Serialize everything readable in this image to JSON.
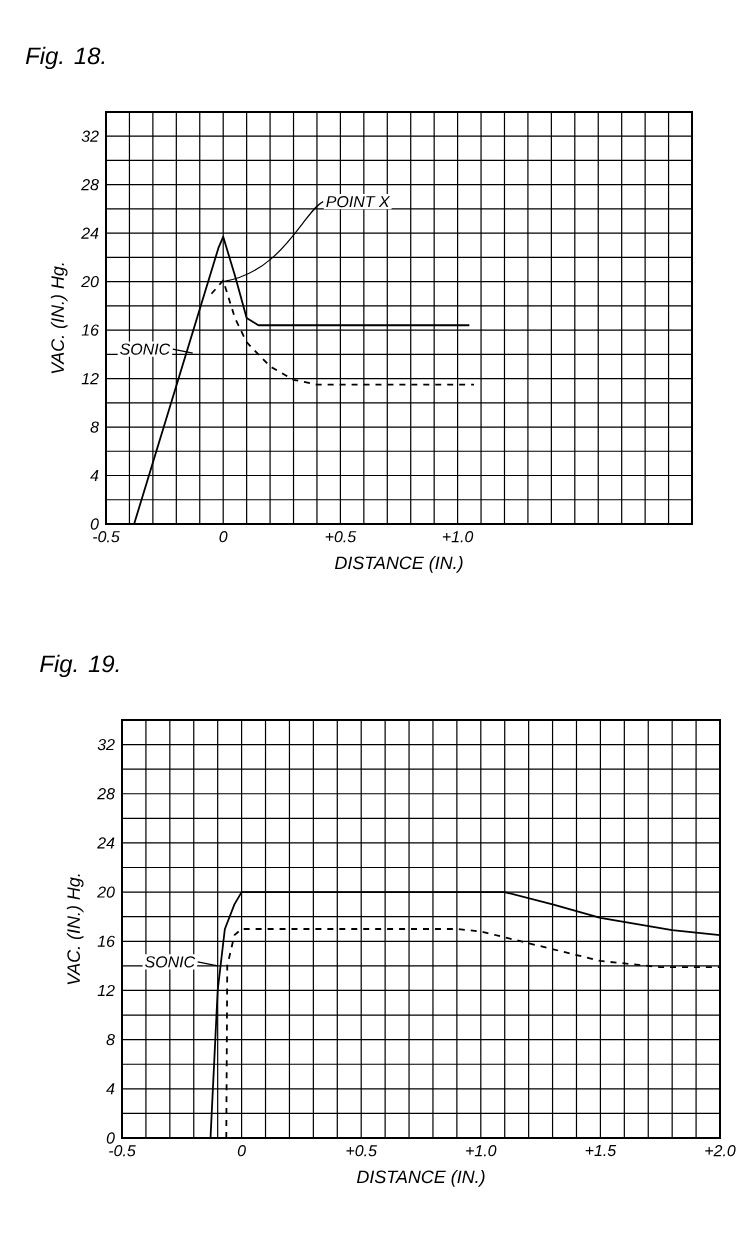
{
  "chart_data": [
    {
      "type": "line",
      "title": "Fig. 18.",
      "xlabel": "DISTANCE (IN.)",
      "ylabel": "VAC. (IN.) Hg.",
      "xlim": [
        -0.5,
        2.0
      ],
      "ylim": [
        0,
        34
      ],
      "xticks": [
        -0.5,
        0,
        {
          "value": 0.5,
          "label": "+0.5"
        },
        {
          "value": 1.0,
          "label": "+1.0"
        },
        {
          "value": 1.5,
          "label": null
        },
        {
          "value": 2.0,
          "label": null
        }
      ],
      "yticks": [
        0,
        4,
        8,
        12,
        16,
        20,
        24,
        28,
        32
      ],
      "grid": true,
      "marker": "none",
      "series": [
        {
          "color": "#000000",
          "line_style": "solid",
          "x": [
            -0.38,
            -0.2,
            -0.02,
            0,
            0.05,
            0.1,
            0.15,
            0.3,
            1.05
          ],
          "values": [
            0,
            11.4,
            22.8,
            23.7,
            20.5,
            17,
            16.4,
            16.4,
            16.4
          ]
        },
        {
          "color": "#000000",
          "line_style": "dashed",
          "x": [
            -0.05,
            0,
            0.05,
            0.1,
            0.2,
            0.3,
            0.4,
            1.07
          ],
          "values": [
            19,
            20.1,
            17,
            15,
            13,
            11.9,
            11.5,
            11.5
          ]
        }
      ],
      "annotations": [
        {
          "text": "POINT X",
          "x": 0.0,
          "y": 20
        },
        {
          "text": "SONIC",
          "x": -0.13,
          "y": 14.1
        }
      ]
    },
    {
      "type": "line",
      "title": "Fig. 19.",
      "xlabel": "DISTANCE (IN.)",
      "ylabel": "VAC. (IN.) Hg.",
      "xlim": [
        -0.5,
        2.0
      ],
      "ylim": [
        0,
        34
      ],
      "xticks": [
        -0.5,
        0,
        {
          "value": 0.5,
          "label": "+0.5"
        },
        {
          "value": 1.0,
          "label": "+1.0"
        },
        {
          "value": 1.5,
          "label": "+1.5"
        },
        {
          "value": 2.0,
          "label": "+2.0"
        }
      ],
      "yticks": [
        0,
        4,
        8,
        12,
        16,
        20,
        24,
        28,
        32
      ],
      "grid": true,
      "marker": "none",
      "series": [
        {
          "color": "#000000",
          "line_style": "solid",
          "x": [
            -0.13,
            -0.1,
            -0.07,
            -0.03,
            0,
            0.5,
            1.1,
            1.3,
            1.5,
            1.8,
            2.0
          ],
          "values": [
            0,
            12,
            17,
            19,
            20,
            20,
            20,
            19,
            17.9,
            16.9,
            16.5
          ]
        },
        {
          "color": "#000000",
          "line_style": "dashed",
          "x": [
            -0.064,
            -0.06,
            -0.03,
            0,
            0.5,
            0.9,
            1.0,
            1.25,
            1.5,
            1.75,
            2.0
          ],
          "values": [
            0,
            14,
            16.5,
            17,
            17,
            17,
            16.8,
            15.6,
            14.4,
            13.9,
            13.9
          ]
        }
      ],
      "annotations": [
        {
          "text": "SONIC",
          "x": -0.1,
          "y": 14
        }
      ]
    }
  ]
}
